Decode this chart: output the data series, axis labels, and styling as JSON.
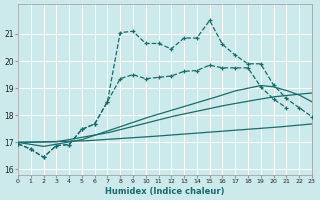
{
  "bg_color": "#cceaeb",
  "grid_color": "#ffffff",
  "line_color": "#1a6b6b",
  "xlabel": "Humidex (Indice chaleur)",
  "xlim": [
    0,
    23
  ],
  "ylim": [
    15.8,
    22.1
  ],
  "yticks": [
    16,
    17,
    18,
    19,
    20,
    21
  ],
  "xticks": [
    0,
    1,
    2,
    3,
    4,
    5,
    6,
    7,
    8,
    9,
    10,
    11,
    12,
    13,
    14,
    15,
    16,
    17,
    18,
    19,
    20,
    21,
    22,
    23
  ],
  "jagged1_x": [
    0,
    1,
    2,
    3,
    4,
    5,
    6,
    7,
    8,
    9,
    10,
    11,
    12,
    13,
    14,
    15,
    16,
    17,
    18,
    19,
    20,
    21,
    22,
    23
  ],
  "jagged1_y": [
    16.95,
    16.75,
    16.45,
    16.88,
    16.92,
    17.48,
    17.68,
    18.5,
    21.05,
    21.1,
    20.65,
    20.65,
    20.45,
    20.85,
    20.85,
    21.5,
    20.62,
    20.22,
    19.9,
    19.9,
    19.12,
    18.62,
    18.28,
    17.95
  ],
  "jagged2_x": [
    0,
    1,
    2,
    3,
    4,
    5,
    6,
    7,
    8,
    9,
    10,
    11,
    12,
    13,
    14,
    15,
    16,
    17,
    18,
    19,
    20,
    21
  ],
  "jagged2_y": [
    16.95,
    16.75,
    16.45,
    16.88,
    16.92,
    17.48,
    17.68,
    18.5,
    19.35,
    19.5,
    19.35,
    19.4,
    19.45,
    19.62,
    19.65,
    19.85,
    19.75,
    19.75,
    19.75,
    19.05,
    18.6,
    18.28
  ],
  "smooth1_kx": [
    0,
    2,
    5,
    10,
    15,
    17,
    19,
    20,
    21,
    22,
    23
  ],
  "smooth1_ky": [
    17.0,
    16.85,
    17.1,
    17.9,
    18.6,
    18.9,
    19.1,
    19.05,
    18.92,
    18.75,
    18.5
  ],
  "smooth2_kx": [
    0,
    3,
    7,
    12,
    16,
    18,
    20,
    22,
    23
  ],
  "smooth2_ky": [
    17.0,
    17.02,
    17.35,
    17.95,
    18.35,
    18.52,
    18.68,
    18.78,
    18.82
  ],
  "smooth3_kx": [
    0,
    5,
    10,
    15,
    20,
    23
  ],
  "smooth3_ky": [
    17.0,
    17.05,
    17.2,
    17.38,
    17.55,
    17.68
  ]
}
